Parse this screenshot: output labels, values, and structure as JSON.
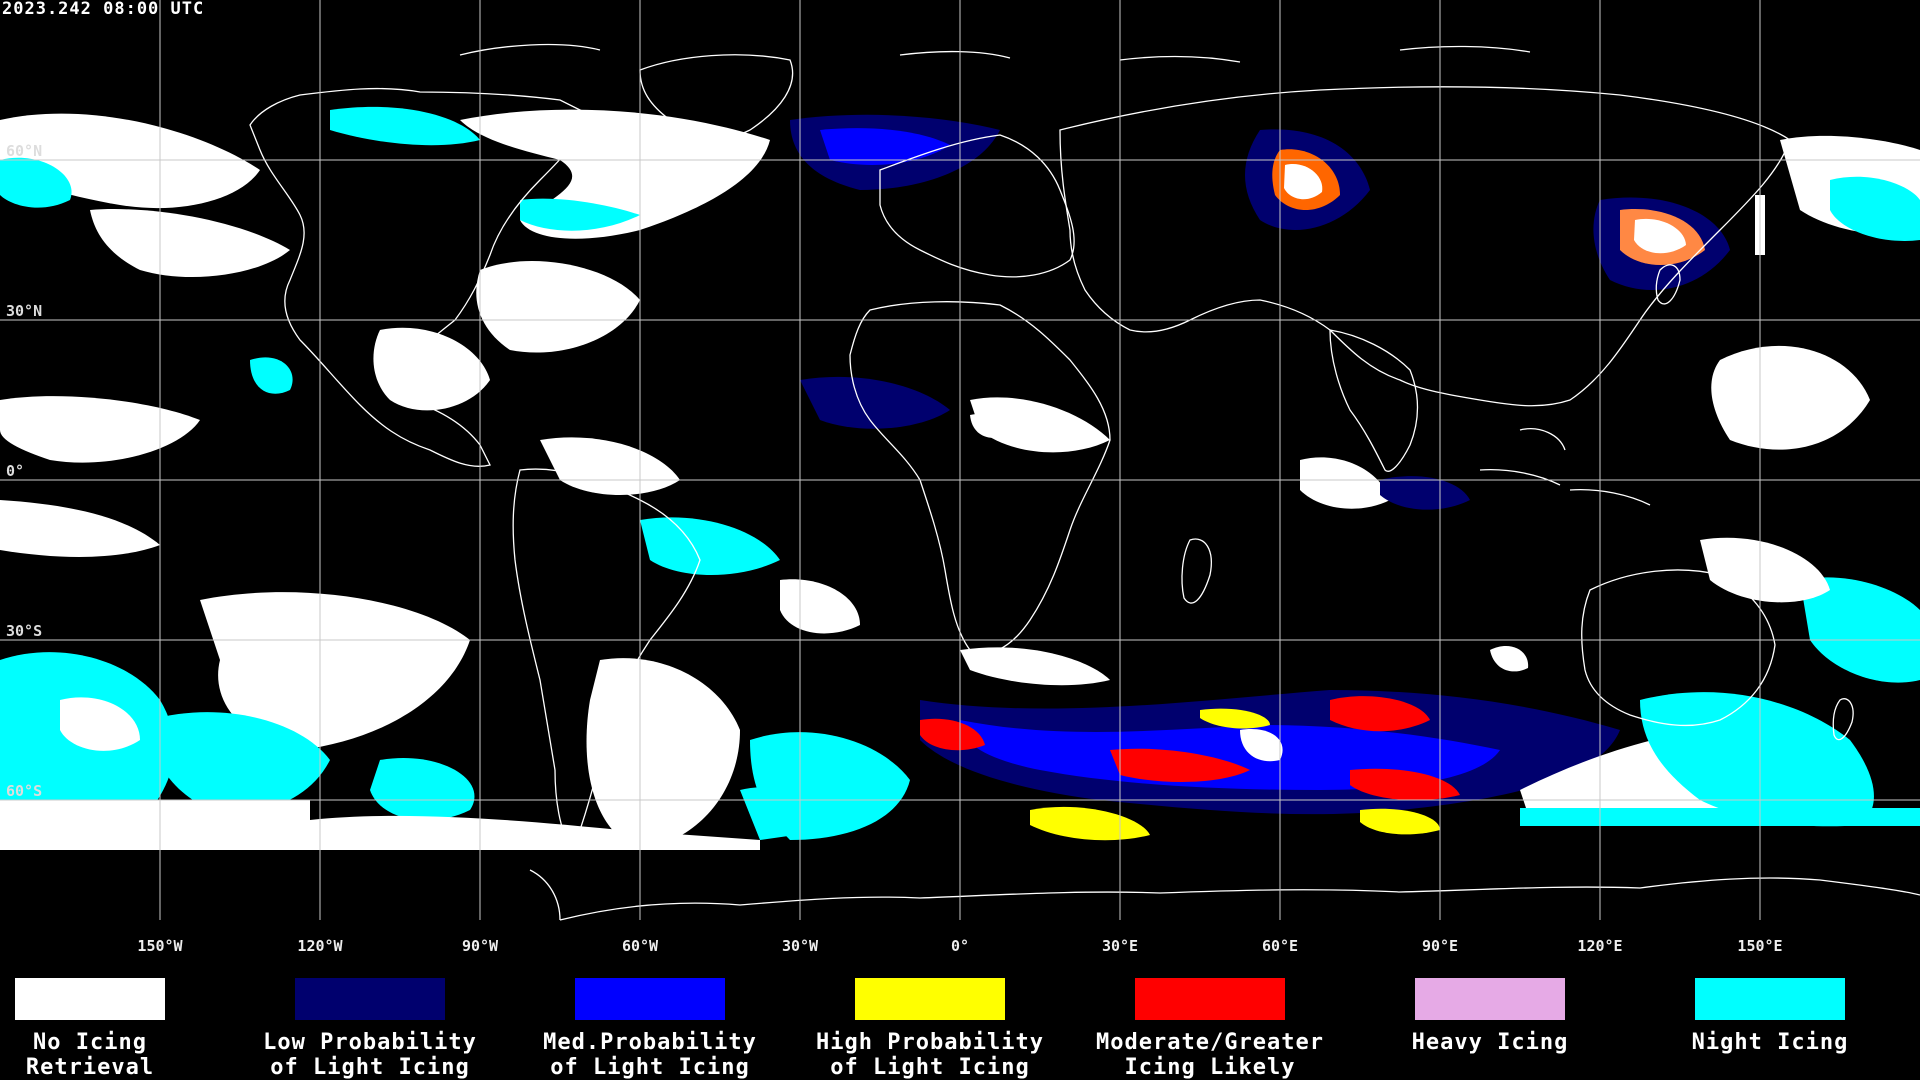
{
  "header": {
    "timestamp": "2023.242 08:00 UTC"
  },
  "map": {
    "background": "#000000",
    "grid_color": "#c8c8c8",
    "coast_color": "#ffffff",
    "lat_labels": [
      {
        "text": "60°N",
        "lat": 60
      },
      {
        "text": "30°N",
        "lat": 30
      },
      {
        "text": "0°",
        "lat": 0
      },
      {
        "text": "30°S",
        "lat": -30
      },
      {
        "text": "60°S",
        "lat": -60
      }
    ],
    "lon_labels": [
      {
        "text": "150°W",
        "lon": -150
      },
      {
        "text": "120°W",
        "lon": -120
      },
      {
        "text": "90°W",
        "lon": -90
      },
      {
        "text": "60°W",
        "lon": -60
      },
      {
        "text": "30°W",
        "lon": -30
      },
      {
        "text": "0°",
        "lon": 0
      },
      {
        "text": "30°E",
        "lon": 30
      },
      {
        "text": "60°E",
        "lon": 60
      },
      {
        "text": "90°E",
        "lon": 90
      },
      {
        "text": "120°E",
        "lon": 120
      },
      {
        "text": "150°E",
        "lon": 150
      }
    ]
  },
  "legend": [
    {
      "label": "No Icing\nRetrieval",
      "color": "#ffffff"
    },
    {
      "label": "Low Probability\nof Light Icing",
      "color": "#00006e"
    },
    {
      "label": "Med.Probability\nof Light Icing",
      "color": "#0000ff"
    },
    {
      "label": "High Probability\nof Light Icing",
      "color": "#ffff00"
    },
    {
      "label": "Moderate/Greater\nIcing Likely",
      "color": "#ff0000"
    },
    {
      "label": "Heavy Icing",
      "color": "#e6aae6"
    },
    {
      "label": "Night Icing",
      "color": "#00ffff"
    }
  ]
}
